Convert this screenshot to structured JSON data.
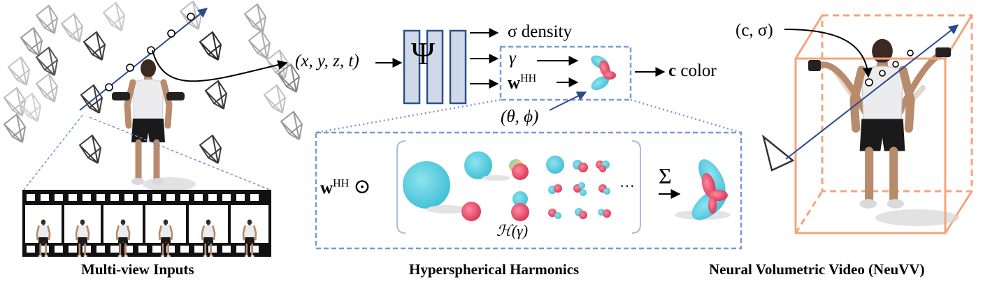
{
  "captions": {
    "left": "Multi-view Inputs",
    "middle": "Hyperspherical Harmonics",
    "right": "Neural Volumetric Video (NeuVV)"
  },
  "math": {
    "input_coords": "(x, y, z, t)",
    "psi": "Ψ",
    "sigma_density": "σ density",
    "gamma": "γ",
    "w": "w",
    "hh": "HH",
    "view_dir": "(θ, ϕ)",
    "color_c": "c",
    "color_word": "color",
    "c_sigma": "(c, σ)",
    "odot": "⊙",
    "sum": "Σ",
    "ellipsis": "···",
    "harmonics_label": "ℋ(γ)"
  },
  "colors": {
    "network_fill": "#cfd9ea",
    "network_stroke": "#2f4f86",
    "dashed_box": "#7b99d8",
    "ray": "#2a4a8c",
    "bbox": "#f4a47c",
    "lobe_cyan": "#56ccdf",
    "lobe_red": "#e8465e"
  }
}
